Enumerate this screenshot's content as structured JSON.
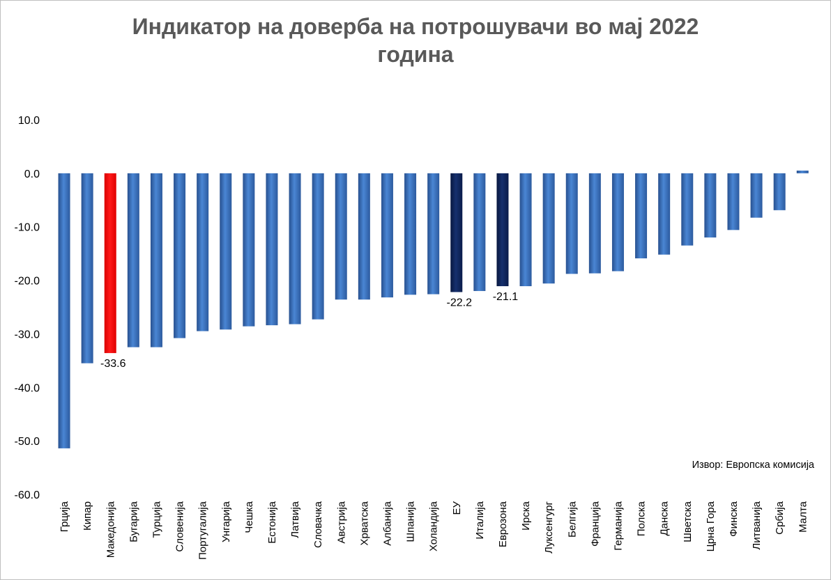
{
  "chart_data": {
    "type": "bar",
    "title_line1": "Индикатор на доверба на потрошувачи во мај 2022",
    "title_line2": "година",
    "source_note": "Извор: Европска комисија",
    "categories": [
      "Грција",
      "Кипар",
      "Македонија",
      "Бугарија",
      "Турција",
      "Словенија",
      "Португалија",
      "Унгарија",
      "Чешка",
      "Естонија",
      "Латвија",
      "Словачка",
      "Австрија",
      "Хрватска",
      "Албанија",
      "Шпанија",
      "Холандија",
      "ЕУ",
      "Италија",
      "Еврозона",
      "Ирска",
      "Луксенгург",
      "Белгија",
      "Франција",
      "Германија",
      "Полска",
      "Данска",
      "Шветска",
      "Црна Гора",
      "Финска",
      "Литванија",
      "Србија",
      "Малта"
    ],
    "values": [
      -51.4,
      -35.5,
      -33.6,
      -32.5,
      -32.5,
      -30.8,
      -29.5,
      -29.2,
      -28.6,
      -28.4,
      -28.2,
      -27.3,
      -23.6,
      -23.6,
      -23.2,
      -22.7,
      -22.6,
      -22.2,
      -22.0,
      -21.1,
      -21.1,
      -20.6,
      -18.8,
      -18.7,
      -18.3,
      -15.9,
      -15.2,
      -13.5,
      -12.0,
      -10.6,
      -8.3,
      -6.9,
      0.5
    ],
    "highlight": {
      "Македонија": "#ff0000",
      "ЕУ": "#0b1f4f",
      "Еврозона": "#0b1f4f"
    },
    "bar_color": "#3a6eb5",
    "data_labels": [
      {
        "category": "Македонија",
        "text": "-33.6"
      },
      {
        "category": "ЕУ",
        "text": "-22.2"
      },
      {
        "category": "Еврозона",
        "text": "-21.1"
      }
    ],
    "yticks": [
      "10.0",
      "0.0",
      "-10.0",
      "-20.0",
      "-30.0",
      "-40.0",
      "-50.0",
      "-60.0"
    ],
    "ylim": [
      -60,
      10
    ],
    "grid": false,
    "legend": "none"
  }
}
